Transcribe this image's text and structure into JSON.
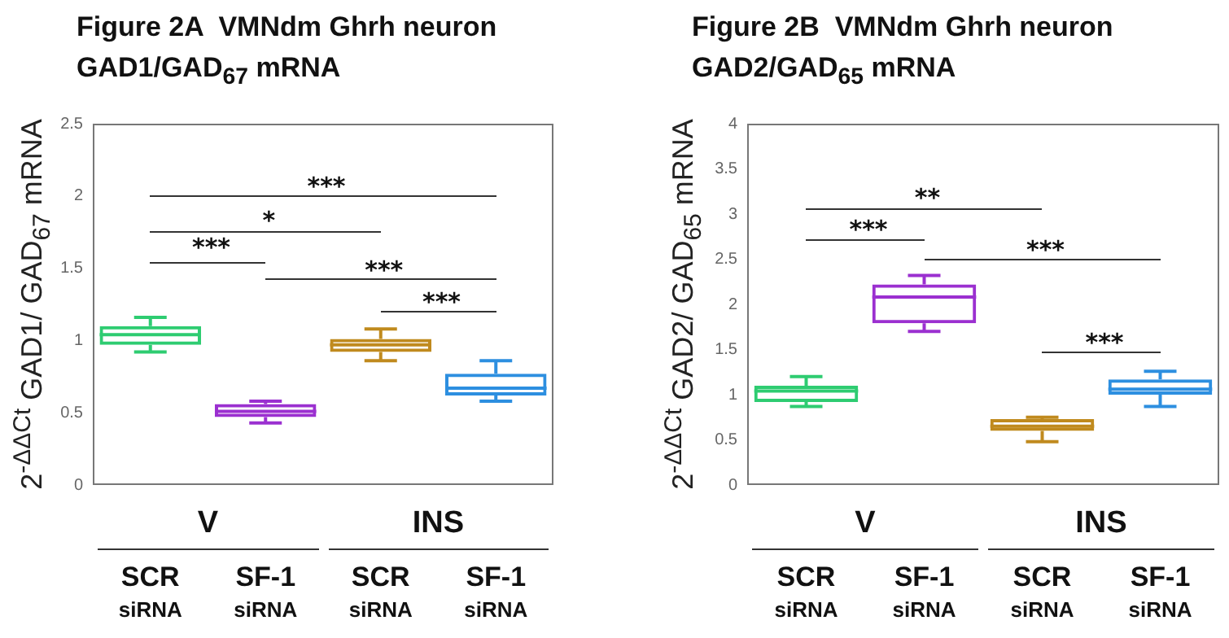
{
  "chart_data": [
    {
      "type": "box",
      "title": "Figure 2A  VMNdm Ghrh neuron",
      "subtitle": "GAD1/GAD$_{67}$ mRNA",
      "ylabel": "2$^{-ΔΔCt}$ GAD1/ GAD$_{67}$ mRNA",
      "categories": [
        "SCR siRNA",
        "SF-1 siRNA",
        "SCR siRNA",
        "SF-1 siRNA"
      ],
      "boxes": [
        {
          "low": 0.92,
          "q1": 0.97,
          "median": 1.04,
          "q3": 1.1,
          "high": 1.16
        },
        {
          "low": 0.43,
          "q1": 0.47,
          "median": 0.51,
          "q3": 0.56,
          "high": 0.58
        },
        {
          "low": 0.86,
          "q1": 0.92,
          "median": 0.97,
          "q3": 1.01,
          "high": 1.08
        },
        {
          "low": 0.58,
          "q1": 0.62,
          "median": 0.67,
          "q3": 0.77,
          "high": 0.86
        }
      ],
      "colors": [
        "#2ecc71",
        "#9b30d0",
        "#c08a1e",
        "#2d8fe0"
      ],
      "ylim": [
        0,
        2.5
      ],
      "yticks": [
        0,
        0.5,
        1,
        1.5,
        2,
        2.5
      ],
      "annotations": [
        "***",
        "*",
        "***",
        "***",
        "***",
        "V",
        "INS"
      ]
    },
    {
      "type": "box",
      "title": "Figure 2B  VMNdm Ghrh neuron",
      "subtitle": "GAD2/GAD$_{65}$ mRNA",
      "ylabel": "2$^{-ΔΔCt}$ GAD2/ GAD$_{65}$ mRNA",
      "categories": [
        "SCR siRNA",
        "SF-1 siRNA",
        "SCR siRNA",
        "SF-1 siRNA"
      ],
      "boxes": [
        {
          "low": 0.87,
          "q1": 0.92,
          "median": 1.04,
          "q3": 1.1,
          "high": 1.2
        },
        {
          "low": 1.7,
          "q1": 1.79,
          "median": 2.08,
          "q3": 2.22,
          "high": 2.32
        },
        {
          "low": 0.48,
          "q1": 0.6,
          "median": 0.65,
          "q3": 0.73,
          "high": 0.75
        },
        {
          "low": 0.87,
          "q1": 1.0,
          "median": 1.06,
          "q3": 1.17,
          "high": 1.26
        }
      ],
      "colors": [
        "#2ecc71",
        "#9b30d0",
        "#c08a1e",
        "#2d8fe0"
      ],
      "ylim": [
        0,
        4
      ],
      "yticks": [
        0,
        0.5,
        1,
        1.5,
        2,
        2.5,
        3,
        3.5,
        4
      ],
      "annotations": [
        "**",
        "***",
        "***",
        "***",
        "V",
        "INS"
      ]
    }
  ]
}
